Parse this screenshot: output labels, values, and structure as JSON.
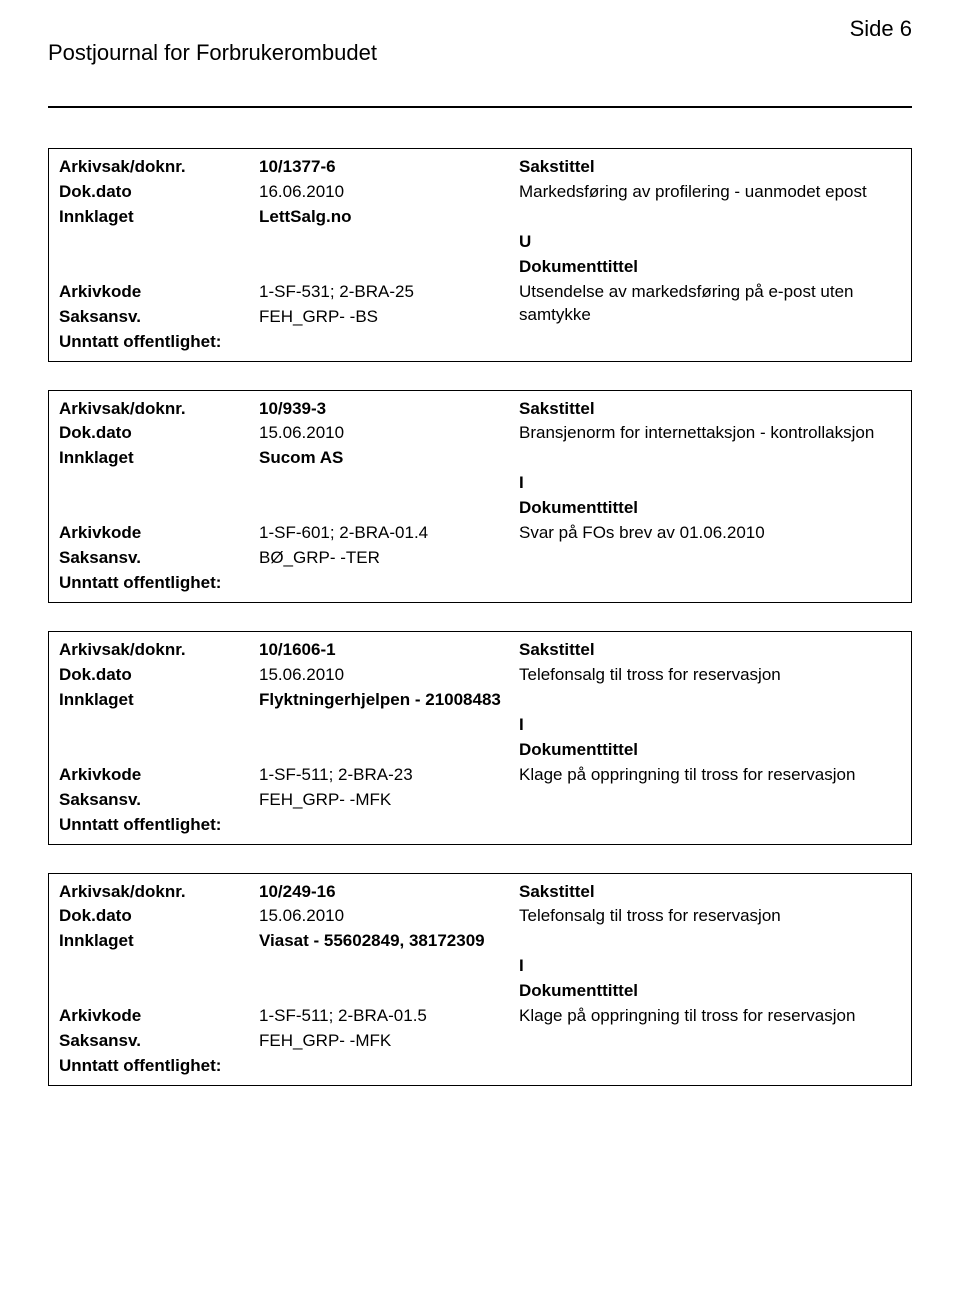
{
  "header": {
    "title": "Postjournal for Forbrukerombudet",
    "page": "Side 6"
  },
  "records": [
    {
      "arkivsak_doknr": "10/1377-6",
      "sakstittel_label": "Sakstittel",
      "dok_dato": "16.06.2010",
      "sakstittel": "Markedsføring av profilering - uanmodet epost",
      "innklaget": "LettSalg.no",
      "direction": "U",
      "doktittel_label": "Dokumenttittel",
      "arkivkode": "1-SF-531; 2-BRA-25",
      "doktittel": "Utsendelse av markedsføring på e-post uten samtykke",
      "saksansv": "FEH_GRP- -BS",
      "unntatt": "Unntatt offentlighet:"
    },
    {
      "arkivsak_doknr": "10/939-3",
      "sakstittel_label": "Sakstittel",
      "dok_dato": "15.06.2010",
      "sakstittel": "Bransjenorm for internettaksjon - kontrollaksjon",
      "innklaget": "Sucom AS",
      "direction": "I",
      "doktittel_label": "Dokumenttittel",
      "arkivkode": "1-SF-601; 2-BRA-01.4",
      "doktittel": "Svar på FOs brev av 01.06.2010",
      "saksansv": "BØ_GRP- -TER",
      "unntatt": "Unntatt offentlighet:"
    },
    {
      "arkivsak_doknr": "10/1606-1",
      "sakstittel_label": "Sakstittel",
      "dok_dato": "15.06.2010",
      "sakstittel": "Telefonsalg til tross for reservasjon",
      "innklaget": "Flyktningerhjelpen - 21008483",
      "direction": "I",
      "doktittel_label": "Dokumenttittel",
      "arkivkode": "1-SF-511; 2-BRA-23",
      "doktittel": "Klage på oppringning til tross for reservasjon",
      "saksansv": "FEH_GRP- -MFK",
      "unntatt": "Unntatt offentlighet:"
    },
    {
      "arkivsak_doknr": "10/249-16",
      "sakstittel_label": "Sakstittel",
      "dok_dato": "15.06.2010",
      "sakstittel": "Telefonsalg til tross for reservasjon",
      "innklaget": "Viasat - 55602849, 38172309",
      "direction": "I",
      "doktittel_label": "Dokumenttittel",
      "arkivkode": "1-SF-511; 2-BRA-01.5",
      "doktittel": "Klage på oppringning til tross for reservasjon",
      "saksansv": "FEH_GRP- -MFK",
      "unntatt": "Unntatt offentlighet:"
    }
  ],
  "labels": {
    "arkivsak_doknr": "Arkivsak/doknr.",
    "dok_dato": "Dok.dato",
    "innklaget": "Innklaget",
    "arkivkode": "Arkivkode",
    "saksansv": "Saksansv.",
    "unntatt": "Unntatt offentlighet:"
  }
}
